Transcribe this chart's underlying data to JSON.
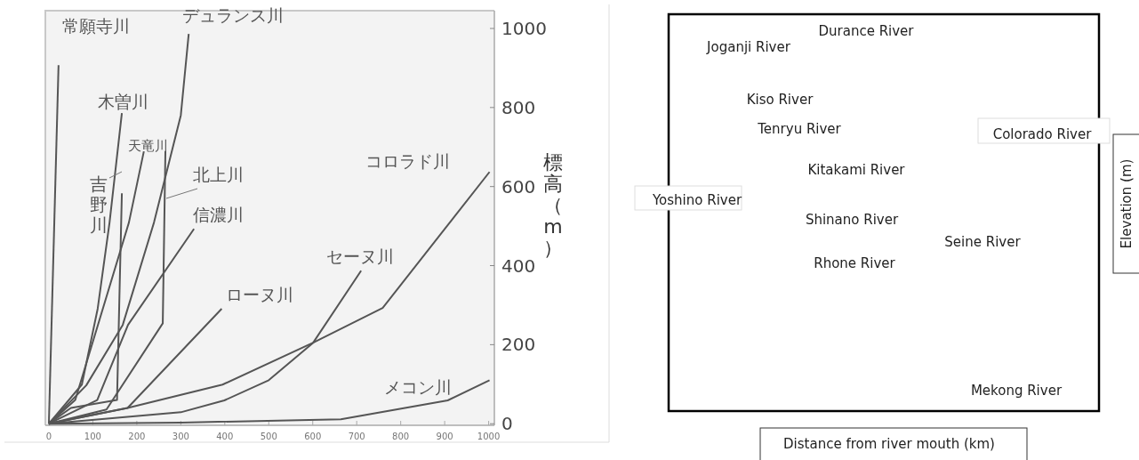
{
  "chart_data": [
    {
      "type": "line",
      "ylabel": "標高（m）",
      "xlim": [
        -8,
        1013
      ],
      "ylim": [
        -4,
        1045
      ],
      "xticks": [
        0,
        100,
        200,
        300,
        400,
        500,
        600,
        700,
        800,
        900,
        1000
      ],
      "yticks": [
        0,
        200,
        400,
        600,
        800,
        1000
      ],
      "legend": false,
      "grid": false,
      "series": [
        {
          "name": "常願寺川",
          "color": "#555555",
          "x": [
            0,
            22
          ],
          "values": [
            0,
            907
          ]
        },
        {
          "name": "デュランス川",
          "color": "#555555",
          "x": [
            0,
            85,
            168,
            239,
            300,
            318
          ],
          "values": [
            0,
            97,
            250,
            509,
            780,
            986
          ]
        },
        {
          "name": "木曽川",
          "color": "#555555",
          "x": [
            0,
            75,
            111,
            138,
            166
          ],
          "values": [
            0,
            99,
            291,
            509,
            786
          ]
        },
        {
          "name": "吉野川",
          "color": "#555555",
          "x": [
            0,
            50,
            155,
            160,
            166
          ],
          "values": [
            0,
            40,
            60,
            300,
            583
          ]
        },
        {
          "name": "天竜川",
          "color": "#555555",
          "x": [
            0,
            60,
            182,
            216
          ],
          "values": [
            0,
            60,
            509,
            689
          ]
        },
        {
          "name": "北上川",
          "color": "#555555",
          "x": [
            0,
            131,
            259,
            265
          ],
          "values": [
            0,
            36,
            254,
            690
          ]
        },
        {
          "name": "信濃川",
          "color": "#555555",
          "x": [
            0,
            110,
            180,
            330
          ],
          "values": [
            0,
            60,
            250,
            493
          ]
        },
        {
          "name": "ローヌ川",
          "color": "#555555",
          "x": [
            0,
            179,
            393
          ],
          "values": [
            0,
            40,
            291
          ]
        },
        {
          "name": "セーヌ川",
          "color": "#555555",
          "x": [
            0,
            300,
            399,
            500,
            601,
            710
          ],
          "values": [
            0,
            29,
            59,
            110,
            205,
            387
          ]
        },
        {
          "name": "コロラド川",
          "color": "#555555",
          "x": [
            0,
            179,
            395,
            601,
            759,
            1002
          ],
          "values": [
            0,
            40,
            99,
            205,
            293,
            637
          ]
        },
        {
          "name": "メコン川",
          "color": "#555555",
          "x": [
            0,
            300,
            664,
            907,
            1002
          ],
          "values": [
            0,
            3,
            11,
            59,
            110
          ]
        }
      ]
    },
    {
      "type": "other",
      "xlabel": "Distance from river mouth (km)",
      "ylabel": "Elevation (m)",
      "annotations": [
        "Durance River",
        "Joganji River",
        "Kiso River",
        "Tenryu River",
        "Colorado River",
        "Kitakami River",
        "Yoshino River",
        "Shinano River",
        "Seine River",
        "Rhone River",
        "Mekong River"
      ]
    }
  ]
}
